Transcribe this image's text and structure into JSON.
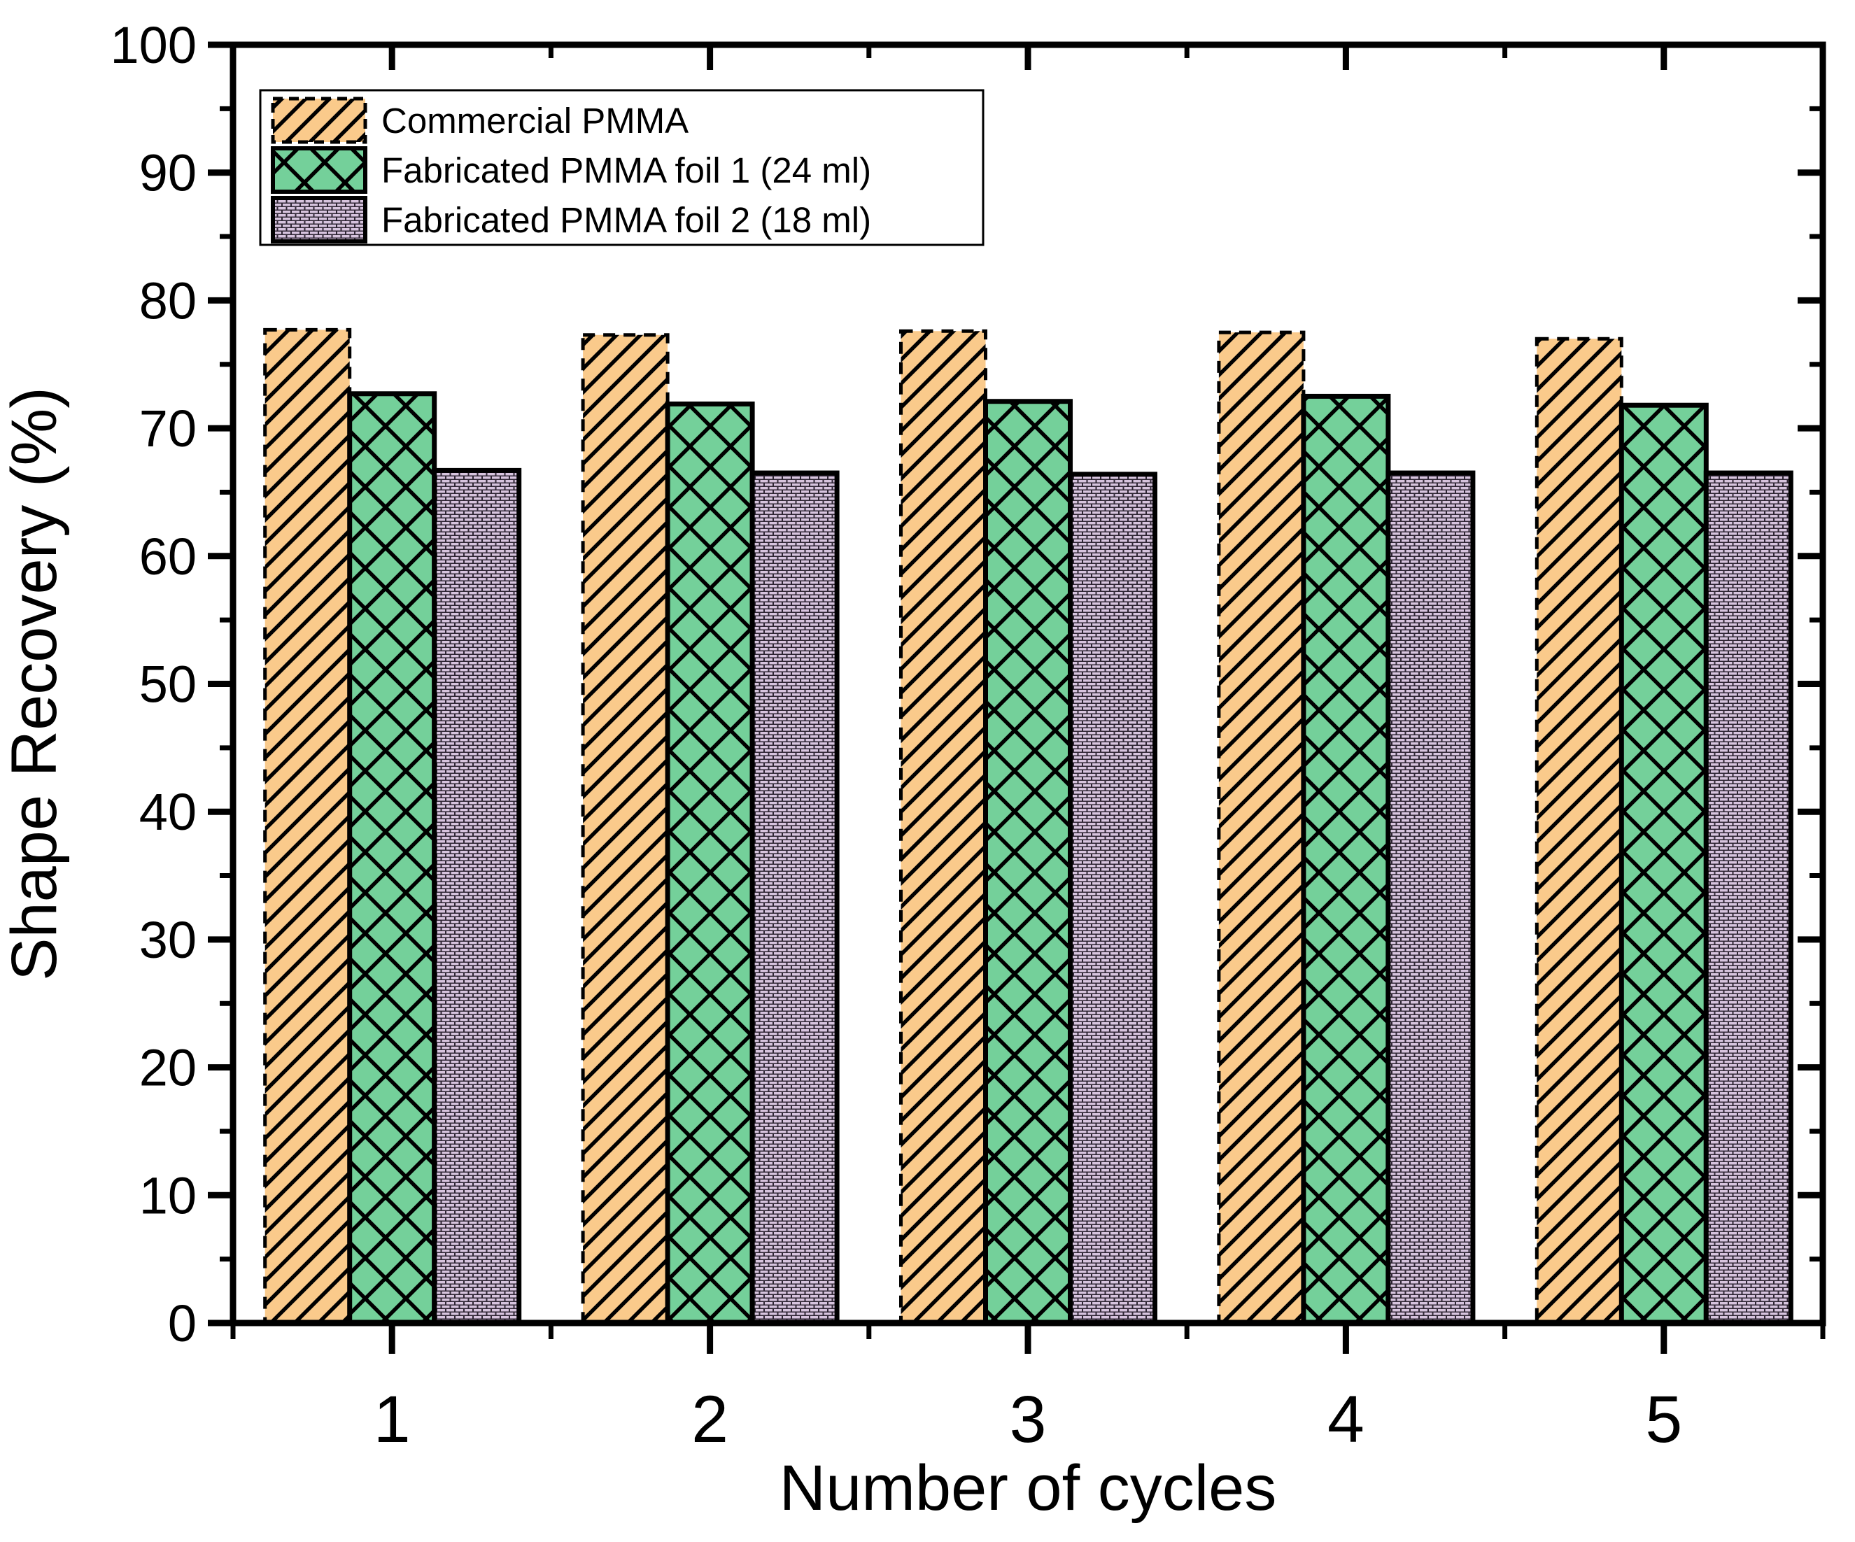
{
  "chart_data": {
    "type": "bar",
    "title": "",
    "xlabel": "Number of cycles",
    "ylabel": "Shape Recovery (%)",
    "categories": [
      "1",
      "2",
      "3",
      "4",
      "5"
    ],
    "series": [
      {
        "name": "Commercial PMMA",
        "values": [
          77.7,
          77.3,
          77.6,
          77.5,
          77.0
        ],
        "fill": "#FACA8B",
        "pattern": "diagonal-hatch",
        "pattern_line": "#000000",
        "edge_style": "dashed"
      },
      {
        "name": "Fabricated PMMA foil 1 (24 ml)",
        "values": [
          72.7,
          71.9,
          72.1,
          72.5,
          71.8
        ],
        "fill": "#74D09A",
        "pattern": "crosshatch",
        "pattern_line": "#000000",
        "edge_style": "solid"
      },
      {
        "name": "Fabricated PMMA foil 2 (18 ml)",
        "values": [
          66.7,
          66.5,
          66.4,
          66.5,
          66.5
        ],
        "fill": "#D7C4DE",
        "pattern": "brick",
        "pattern_line": "#2E2533",
        "edge_style": "solid"
      }
    ],
    "ylim": [
      0,
      100
    ],
    "y_major_step": 10,
    "y_minor_step": 5,
    "x_tick_labels": [
      "1",
      "2",
      "3",
      "4",
      "5"
    ],
    "grid": false,
    "legend_position": "top-left",
    "axis_color": "#000000",
    "background_color": "#FFFFFF"
  }
}
